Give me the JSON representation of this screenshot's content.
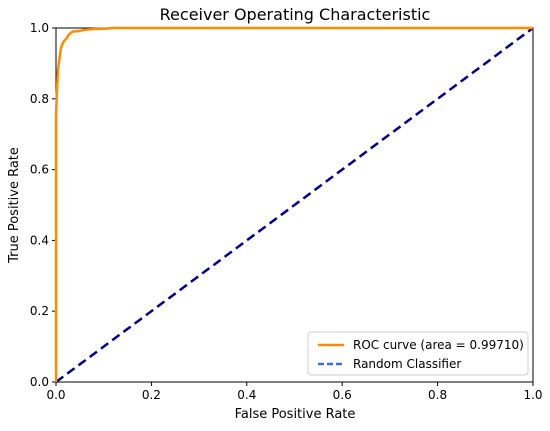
{
  "chart_data": {
    "type": "line",
    "title": "Receiver Operating Characteristic",
    "xlabel": "False Positive Rate",
    "ylabel": "True Positive Rate",
    "xlim": [
      0.0,
      1.0
    ],
    "ylim": [
      0.0,
      1.0
    ],
    "xticks": [
      0.0,
      0.2,
      0.4,
      0.6,
      0.8,
      1.0
    ],
    "yticks": [
      0.0,
      0.2,
      0.4,
      0.6,
      0.8,
      1.0
    ],
    "tick_labels_x": [
      "0.0",
      "0.2",
      "0.4",
      "0.6",
      "0.8",
      "1.0"
    ],
    "tick_labels_y": [
      "0.0",
      "0.2",
      "0.4",
      "0.6",
      "0.8",
      "1.0"
    ],
    "grid": false,
    "legend_position": "lower-right",
    "series": [
      {
        "name": "ROC curve (area = 0.99710)",
        "color": "#ff8c00",
        "style": "solid",
        "x": [
          0.0,
          0.0,
          0.002,
          0.004,
          0.006,
          0.008,
          0.01,
          0.012,
          0.015,
          0.018,
          0.022,
          0.026,
          0.03,
          0.035,
          0.04,
          0.05,
          0.06,
          0.08,
          0.1,
          0.12,
          1.0
        ],
        "y": [
          0.0,
          0.76,
          0.82,
          0.88,
          0.9,
          0.92,
          0.94,
          0.95,
          0.96,
          0.965,
          0.97,
          0.98,
          0.985,
          0.99,
          0.99,
          0.992,
          0.995,
          0.997,
          0.998,
          1.0,
          1.0
        ]
      },
      {
        "name": "Random Classifier",
        "color": "#00008b",
        "legend_color": "#4169e1",
        "style": "dashed",
        "x": [
          0.0,
          1.0
        ],
        "y": [
          0.0,
          1.0
        ]
      }
    ]
  }
}
